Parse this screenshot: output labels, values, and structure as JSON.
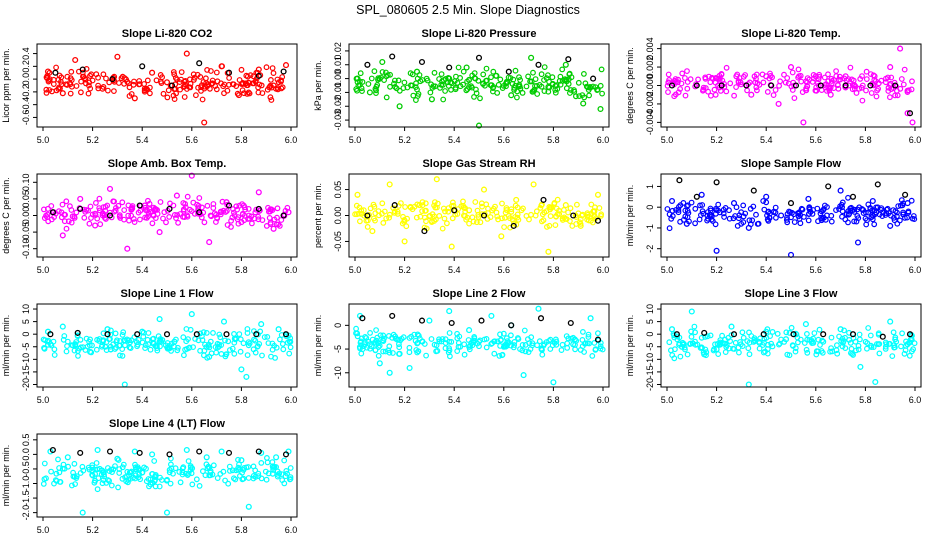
{
  "page_title": "SPL_080605  2.5 Min. Slope Diagnostics",
  "chart_data": [
    {
      "type": "scatter",
      "title": "Slope Li-820 CO2",
      "ylabel": "Licor ppm per min.",
      "xlim": [
        5.0,
        6.0
      ],
      "ylim": [
        -0.75,
        0.55
      ],
      "xticks": [
        "5.0",
        "5.2",
        "5.4",
        "5.6",
        "5.8",
        "6.0"
      ],
      "yticks": [
        "-0.6",
        "-0.4",
        "-0.2",
        "0.0",
        "0.2",
        "0.4"
      ],
      "color": "#ff0000",
      "series": [
        {
          "role": "points",
          "x": [
            5.02,
            5.08,
            5.13,
            5.19,
            5.24,
            5.3,
            5.37,
            5.44,
            5.5,
            5.58,
            5.65,
            5.72,
            5.79,
            5.87,
            5.93,
            5.98
          ],
          "y": [
            0.12,
            -0.22,
            0.3,
            0.05,
            -0.15,
            0.35,
            -0.3,
            0.1,
            -0.05,
            0.4,
            -0.68,
            0.2,
            -0.25,
            0.15,
            -0.1,
            0.22
          ]
        },
        {
          "role": "reference",
          "x": [
            5.05,
            5.16,
            5.28,
            5.4,
            5.52,
            5.63,
            5.75,
            5.87,
            5.97
          ],
          "y": [
            0.1,
            0.15,
            0.0,
            0.2,
            -0.1,
            0.25,
            0.1,
            0.05,
            0.12
          ]
        }
      ]
    },
    {
      "type": "scatter",
      "title": "Slope Li-820 Pressure",
      "ylabel": "kPa per min.",
      "xlim": [
        5.0,
        6.0
      ],
      "ylim": [
        -0.035,
        0.025
      ],
      "xticks": [
        "5.0",
        "5.2",
        "5.4",
        "5.6",
        "5.8",
        "6.0"
      ],
      "yticks": [
        "-0.03",
        "-0.02",
        "-0.01",
        "0.00",
        "0.01",
        "0.02"
      ],
      "color": "#00cc00",
      "series": [
        {
          "role": "points",
          "x": [
            5.01,
            5.06,
            5.11,
            5.18,
            5.25,
            5.31,
            5.38,
            5.45,
            5.5,
            5.57,
            5.63,
            5.71,
            5.78,
            5.85,
            5.92,
            5.99
          ],
          "y": [
            0.0,
            -0.01,
            0.012,
            -0.02,
            0.005,
            -0.015,
            0.0,
            0.008,
            -0.034,
            0.002,
            -0.012,
            0.015,
            -0.006,
            0.01,
            -0.018,
            -0.022
          ]
        },
        {
          "role": "reference",
          "x": [
            5.05,
            5.15,
            5.27,
            5.38,
            5.5,
            5.62,
            5.74,
            5.86,
            5.96
          ],
          "y": [
            0.01,
            0.016,
            0.012,
            0.008,
            0.015,
            0.005,
            0.01,
            0.014,
            0.0
          ]
        }
      ]
    },
    {
      "type": "scatter",
      "title": "Slope Li-820 Temp.",
      "ylabel": "degrees C per min.",
      "xlim": [
        5.0,
        6.0
      ],
      "ylim": [
        -0.0045,
        0.0045
      ],
      "xticks": [
        "5.0",
        "5.2",
        "5.4",
        "5.6",
        "5.8",
        "6.0"
      ],
      "yticks": [
        "-0.004",
        "-0.002",
        "0.000",
        "0.002",
        "0.004"
      ],
      "color": "#ff00ff",
      "series": [
        {
          "role": "points",
          "x": [
            5.28,
            5.34,
            5.4,
            5.45,
            5.5,
            5.55,
            5.6,
            5.66,
            5.72,
            5.9,
            5.94,
            5.97,
            5.99
          ],
          "y": [
            0.001,
            -0.001,
            0.001,
            -0.002,
            0.002,
            -0.004,
            0.001,
            -0.001,
            0.001,
            0.002,
            0.004,
            -0.003,
            -0.004
          ]
        },
        {
          "role": "reference",
          "x": [
            5.02,
            5.12,
            5.22,
            5.32,
            5.42,
            5.52,
            5.62,
            5.72,
            5.82,
            5.92,
            5.98
          ],
          "y": [
            0.0,
            0.0,
            0.0,
            0.0,
            0.0,
            0.0,
            0.0,
            0.0,
            0.0,
            0.0,
            -0.003
          ]
        }
      ]
    },
    {
      "type": "scatter",
      "title": "Slope Amb. Box Temp.",
      "ylabel": "degrees C per min.",
      "xlim": [
        5.0,
        6.0
      ],
      "ylim": [
        -0.125,
        0.125
      ],
      "xticks": [
        "5.0",
        "5.2",
        "5.4",
        "5.6",
        "5.8",
        "6.0"
      ],
      "yticks": [
        "-0.10",
        "-0.05",
        "0.00",
        "0.05",
        "0.10"
      ],
      "color": "#ff00ff",
      "series": [
        {
          "role": "points",
          "x": [
            5.02,
            5.08,
            5.15,
            5.21,
            5.27,
            5.34,
            5.41,
            5.47,
            5.54,
            5.6,
            5.67,
            5.74,
            5.8,
            5.87,
            5.93,
            5.99
          ],
          "y": [
            0.02,
            -0.06,
            0.05,
            -0.03,
            0.08,
            -0.1,
            0.03,
            -0.05,
            0.06,
            0.12,
            -0.08,
            0.04,
            -0.02,
            0.07,
            -0.04,
            0.01
          ]
        },
        {
          "role": "reference",
          "x": [
            5.04,
            5.15,
            5.27,
            5.39,
            5.51,
            5.63,
            5.75,
            5.87,
            5.97
          ],
          "y": [
            0.01,
            0.02,
            0.0,
            0.03,
            0.02,
            0.01,
            0.03,
            0.02,
            0.0
          ]
        }
      ]
    },
    {
      "type": "scatter",
      "title": "Slope Gas Stream RH",
      "ylabel": "percent per min.",
      "xlim": [
        5.0,
        6.0
      ],
      "ylim": [
        -0.08,
        0.08
      ],
      "xticks": [
        "5.0",
        "5.2",
        "5.4",
        "5.6",
        "5.8",
        "6.0"
      ],
      "yticks": [
        "-0.05",
        "0.00",
        "0.05"
      ],
      "color": "#ffff00",
      "series": [
        {
          "role": "points",
          "x": [
            5.01,
            5.07,
            5.14,
            5.2,
            5.26,
            5.33,
            5.39,
            5.46,
            5.52,
            5.59,
            5.65,
            5.72,
            5.78,
            5.85,
            5.91,
            5.98
          ],
          "y": [
            0.04,
            -0.03,
            0.06,
            -0.05,
            0.02,
            0.07,
            -0.06,
            0.01,
            0.05,
            -0.04,
            0.03,
            0.06,
            -0.07,
            0.02,
            -0.02,
            0.04
          ]
        },
        {
          "role": "reference",
          "x": [
            5.05,
            5.16,
            5.28,
            5.4,
            5.52,
            5.64,
            5.76,
            5.88,
            5.98
          ],
          "y": [
            0.0,
            0.02,
            -0.03,
            0.01,
            0.0,
            -0.02,
            0.03,
            0.0,
            -0.01
          ]
        }
      ]
    },
    {
      "type": "scatter",
      "title": "Slope Sample Flow",
      "ylabel": "ml/min per min.",
      "xlim": [
        5.0,
        6.0
      ],
      "ylim": [
        -2.4,
        1.6
      ],
      "xticks": [
        "5.0",
        "5.2",
        "5.4",
        "5.6",
        "5.8",
        "6.0"
      ],
      "yticks": [
        "-2",
        "-1",
        "0",
        "1"
      ],
      "color": "#0000ff",
      "series": [
        {
          "role": "points",
          "x": [
            5.02,
            5.08,
            5.14,
            5.2,
            5.27,
            5.33,
            5.4,
            5.46,
            5.5,
            5.57,
            5.64,
            5.7,
            5.77,
            5.83,
            5.9,
            5.97
          ],
          "y": [
            0.3,
            -0.8,
            0.6,
            -2.1,
            0.2,
            -1.0,
            0.5,
            -0.4,
            -2.3,
            0.4,
            -0.6,
            0.8,
            -1.7,
            0.3,
            -0.9,
            0.2
          ]
        },
        {
          "role": "reference",
          "x": [
            5.05,
            5.12,
            5.2,
            5.35,
            5.5,
            5.65,
            5.75,
            5.85,
            5.96
          ],
          "y": [
            1.3,
            0.5,
            1.2,
            0.8,
            0.2,
            1.0,
            0.5,
            1.1,
            0.6
          ]
        }
      ]
    },
    {
      "type": "scatter",
      "title": "Slope Line 1 Flow",
      "ylabel": "ml/min per min.",
      "xlim": [
        5.0,
        6.0
      ],
      "ylim": [
        -21,
        12
      ],
      "xticks": [
        "5.0",
        "5.2",
        "5.4",
        "5.6",
        "5.8",
        "6.0"
      ],
      "yticks": [
        "-20",
        "-15",
        "-10",
        "-5",
        "0",
        "5",
        "10"
      ],
      "color": "#00ffff",
      "series": [
        {
          "role": "points",
          "x": [
            5.02,
            5.08,
            5.13,
            5.19,
            5.26,
            5.33,
            5.4,
            5.47,
            5.53,
            5.6,
            5.67,
            5.73,
            5.8,
            5.82,
            5.88,
            5.95
          ],
          "y": [
            1.0,
            3.0,
            -4.0,
            -7.0,
            2.0,
            -20.0,
            1.0,
            6.0,
            -3.0,
            8.0,
            -9.0,
            5.0,
            -14.0,
            -17.0,
            4.0,
            2.0
          ]
        },
        {
          "role": "reference",
          "x": [
            5.03,
            5.14,
            5.26,
            5.38,
            5.5,
            5.62,
            5.74,
            5.86,
            5.98
          ],
          "y": [
            0.0,
            0.5,
            0.0,
            0.0,
            0.0,
            0.0,
            0.0,
            0.0,
            0.0
          ]
        }
      ]
    },
    {
      "type": "scatter",
      "title": "Slope Line 2 Flow",
      "ylabel": "ml/min per min.",
      "xlim": [
        5.0,
        6.0
      ],
      "ylim": [
        -13,
        4.5
      ],
      "xticks": [
        "5.0",
        "5.2",
        "5.4",
        "5.6",
        "5.8",
        "6.0"
      ],
      "yticks": [
        "-10",
        "-5",
        "0"
      ],
      "color": "#00ffff",
      "series": [
        {
          "role": "points",
          "x": [
            5.02,
            5.06,
            5.1,
            5.14,
            5.18,
            5.22,
            5.3,
            5.38,
            5.46,
            5.55,
            5.63,
            5.68,
            5.74,
            5.8,
            5.88,
            5.95
          ],
          "y": [
            2.0,
            -4.0,
            -8.0,
            -10.0,
            -6.0,
            -9.0,
            1.0,
            3.0,
            -1.0,
            2.0,
            0.0,
            -10.5,
            3.5,
            -12.0,
            -4.0,
            1.5
          ]
        },
        {
          "role": "reference",
          "x": [
            5.03,
            5.15,
            5.27,
            5.39,
            5.51,
            5.63,
            5.75,
            5.87,
            5.98
          ],
          "y": [
            1.5,
            2.0,
            1.0,
            0.5,
            1.0,
            0.0,
            1.5,
            0.5,
            -3.0
          ]
        }
      ]
    },
    {
      "type": "scatter",
      "title": "Slope Line 3 Flow",
      "ylabel": "ml/min per min.",
      "xlim": [
        5.0,
        6.0
      ],
      "ylim": [
        -21,
        12
      ],
      "xticks": [
        "5.0",
        "5.2",
        "5.4",
        "5.6",
        "5.8",
        "6.0"
      ],
      "yticks": [
        "-20",
        "-15",
        "-10",
        "-5",
        "0",
        "5",
        "10"
      ],
      "color": "#00ffff",
      "series": [
        {
          "role": "points",
          "x": [
            5.02,
            5.06,
            5.1,
            5.15,
            5.2,
            5.26,
            5.33,
            5.4,
            5.48,
            5.56,
            5.63,
            5.7,
            5.78,
            5.84,
            5.9,
            5.97
          ],
          "y": [
            2.0,
            -5.0,
            9.0,
            -8.0,
            -6.0,
            3.0,
            -20.0,
            1.0,
            -2.0,
            4.0,
            -3.0,
            2.0,
            -13.0,
            -19.0,
            5.0,
            -4.0
          ]
        },
        {
          "role": "reference",
          "x": [
            5.04,
            5.15,
            5.27,
            5.39,
            5.51,
            5.63,
            5.75,
            5.87,
            5.98
          ],
          "y": [
            0.0,
            0.5,
            0.0,
            0.0,
            0.0,
            0.0,
            0.0,
            -1.0,
            0.0
          ]
        }
      ]
    },
    {
      "type": "scatter",
      "title": "Slope Line 4 (LT) Flow",
      "ylabel": "ml/min per min.",
      "xlim": [
        5.0,
        6.0
      ],
      "ylim": [
        -2.15,
        0.7
      ],
      "xticks": [
        "5.0",
        "5.2",
        "5.4",
        "5.6",
        "5.8",
        "6.0"
      ],
      "yticks": [
        "-2.0",
        "-1.5",
        "-1.0",
        "-0.5",
        "0.0",
        "0.5"
      ],
      "color": "#00ffff",
      "series": [
        {
          "role": "points",
          "x": [
            5.03,
            5.1,
            5.16,
            5.22,
            5.3,
            5.37,
            5.44,
            5.5,
            5.58,
            5.66,
            5.72,
            5.8,
            5.83,
            5.88,
            5.94,
            5.99
          ],
          "y": [
            0.1,
            -0.1,
            -2.0,
            0.15,
            -0.15,
            0.1,
            0.0,
            -2.0,
            0.15,
            -0.1,
            0.1,
            -0.2,
            -1.8,
            0.05,
            -0.1,
            0.1
          ]
        },
        {
          "role": "reference",
          "x": [
            5.04,
            5.15,
            5.27,
            5.39,
            5.51,
            5.63,
            5.75,
            5.87,
            5.98
          ],
          "y": [
            0.15,
            0.05,
            0.1,
            0.05,
            0.0,
            0.1,
            0.05,
            0.1,
            0.0
          ]
        }
      ]
    }
  ]
}
